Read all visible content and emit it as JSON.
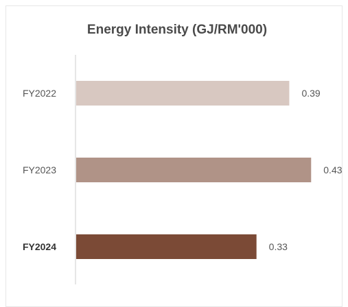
{
  "chart_data": {
    "type": "bar",
    "orientation": "horizontal",
    "title": "Energy Intensity (GJ/RM'000)",
    "categories": [
      "FY2022",
      "FY2023",
      "FY2024"
    ],
    "values": [
      0.39,
      0.43,
      0.33
    ],
    "value_labels": [
      "0.39",
      "0.43",
      "0.33"
    ],
    "highlighted_category": "FY2024",
    "bar_colors": [
      "#d8c8c1",
      "#b09387",
      "#7b4a36"
    ],
    "xlim": [
      0,
      0.5
    ],
    "grid": false,
    "legend": "none"
  }
}
